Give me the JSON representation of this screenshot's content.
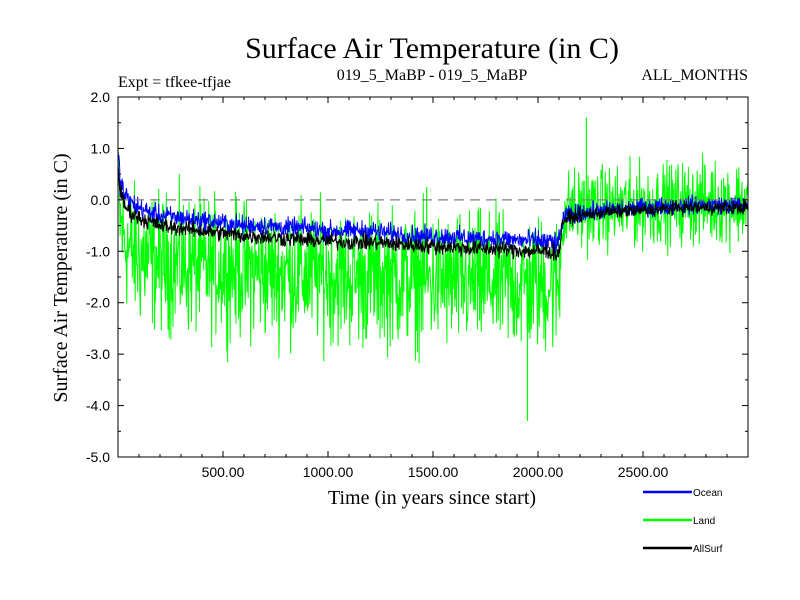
{
  "chart_data": {
    "type": "line",
    "title": "Surface Air Temperature (in C)",
    "subtitle_left": "Expt = tfkee-tfjae",
    "subtitle_center": "019_5_MaBP - 019_5_MaBP",
    "subtitle_right": "ALL_MONTHS",
    "xlabel": "Time (in years since start)",
    "ylabel": "Surface Air Temperature (in C)",
    "xlim": [
      0,
      3000
    ],
    "ylim": [
      -5.0,
      2.0
    ],
    "x_ticks": [
      500,
      1000,
      1500,
      2000,
      2500
    ],
    "x_tick_labels": [
      "500.00",
      "1000.00",
      "1500.00",
      "2000.00",
      "2500.00"
    ],
    "y_ticks": [
      2.0,
      1.0,
      0.0,
      -1.0,
      -2.0,
      -3.0,
      -4.0,
      -5.0
    ],
    "y_tick_labels": [
      "2.0",
      "1.0",
      "0.0",
      "-1.0",
      "-2.0",
      "-3.0",
      "-4.0",
      "-5.0"
    ],
    "reference_line": {
      "y": 0.0,
      "style": "dashed",
      "color": "#808080"
    },
    "legend_position": "bottom-right",
    "series": [
      {
        "name": "Land",
        "color": "#00ff00",
        "x": [
          0,
          10,
          30,
          60,
          100,
          150,
          200,
          300,
          400,
          500,
          600,
          700,
          800,
          900,
          1000,
          1100,
          1200,
          1300,
          1400,
          1460,
          1470,
          1480,
          1500,
          1600,
          1700,
          1800,
          1900,
          2000,
          2050,
          2100,
          2110,
          2120,
          2150,
          2200,
          2300,
          2400,
          2500,
          2600,
          2700,
          2800,
          2900,
          3000
        ],
        "mean": [
          0.3,
          -0.4,
          -0.8,
          -1.0,
          -1.1,
          -1.15,
          -1.2,
          -1.25,
          -1.3,
          -1.3,
          -1.35,
          -1.4,
          -1.4,
          -1.45,
          -1.45,
          -1.5,
          -1.5,
          -1.5,
          -1.55,
          -1.55,
          -1.55,
          -1.55,
          -1.55,
          -1.6,
          -1.6,
          -1.6,
          -1.65,
          -1.65,
          -1.65,
          -1.65,
          -0.8,
          -0.3,
          -0.2,
          -0.2,
          -0.15,
          -0.15,
          -0.1,
          -0.1,
          -0.05,
          -0.05,
          -0.05,
          -0.05
        ],
        "spread": [
          1.0,
          1.3,
          1.4,
          1.45,
          1.5,
          1.5,
          1.5,
          1.5,
          1.5,
          1.5,
          1.5,
          1.5,
          1.5,
          1.5,
          1.5,
          1.5,
          1.5,
          1.5,
          1.5,
          1.5,
          1.5,
          1.5,
          1.5,
          1.5,
          1.5,
          1.5,
          1.5,
          1.5,
          1.5,
          1.5,
          1.2,
          0.9,
          0.9,
          0.9,
          0.9,
          0.9,
          0.9,
          0.9,
          0.9,
          0.9,
          0.9,
          0.9
        ],
        "notable_points": [
          {
            "x": 1470,
            "y": 0.25
          },
          {
            "x": 2230,
            "y": 1.6
          },
          {
            "x": 1950,
            "y": -4.3
          }
        ]
      },
      {
        "name": "Ocean",
        "color": "#0000ff",
        "x": [
          0,
          10,
          30,
          60,
          100,
          150,
          200,
          300,
          400,
          500,
          600,
          700,
          800,
          900,
          1000,
          1100,
          1200,
          1300,
          1400,
          1500,
          1600,
          1700,
          1800,
          1900,
          2000,
          2050,
          2100,
          2110,
          2120,
          2150,
          2200,
          2300,
          2400,
          2500,
          2600,
          2700,
          2800,
          2900,
          3000
        ],
        "mean": [
          0.9,
          0.4,
          0.1,
          -0.05,
          -0.15,
          -0.25,
          -0.3,
          -0.35,
          -0.4,
          -0.45,
          -0.5,
          -0.5,
          -0.55,
          -0.55,
          -0.6,
          -0.6,
          -0.6,
          -0.65,
          -0.7,
          -0.7,
          -0.72,
          -0.75,
          -0.75,
          -0.78,
          -0.8,
          -0.82,
          -0.85,
          -0.55,
          -0.35,
          -0.3,
          -0.25,
          -0.2,
          -0.18,
          -0.15,
          -0.12,
          -0.1,
          -0.1,
          -0.1,
          -0.1
        ],
        "spread": [
          0.3,
          0.3,
          0.28,
          0.25,
          0.25,
          0.22,
          0.22,
          0.22,
          0.22,
          0.22,
          0.22,
          0.22,
          0.22,
          0.22,
          0.22,
          0.22,
          0.22,
          0.22,
          0.22,
          0.22,
          0.22,
          0.22,
          0.22,
          0.22,
          0.25,
          0.25,
          0.25,
          0.25,
          0.22,
          0.2,
          0.2,
          0.2,
          0.2,
          0.2,
          0.2,
          0.2,
          0.2,
          0.2,
          0.2
        ]
      },
      {
        "name": "AllSurf",
        "color": "#000000",
        "x": [
          0,
          10,
          30,
          60,
          100,
          200,
          300,
          400,
          500,
          600,
          700,
          800,
          900,
          1000,
          1100,
          1200,
          1300,
          1400,
          1500,
          1600,
          1700,
          1800,
          1900,
          2000,
          2050,
          2100,
          2110,
          2120,
          2150,
          2200,
          2300,
          2400,
          2500,
          2600,
          2700,
          2800,
          2900,
          3000
        ],
        "mean": [
          0.7,
          0.2,
          -0.1,
          -0.25,
          -0.35,
          -0.5,
          -0.55,
          -0.6,
          -0.65,
          -0.7,
          -0.72,
          -0.75,
          -0.78,
          -0.8,
          -0.82,
          -0.82,
          -0.85,
          -0.88,
          -0.9,
          -0.92,
          -0.95,
          -0.95,
          -0.98,
          -1.0,
          -1.0,
          -1.05,
          -0.65,
          -0.4,
          -0.35,
          -0.3,
          -0.25,
          -0.22,
          -0.2,
          -0.18,
          -0.15,
          -0.15,
          -0.15,
          -0.15
        ],
        "spread": [
          0.2,
          0.2,
          0.2,
          0.18,
          0.18,
          0.18,
          0.18,
          0.18,
          0.18,
          0.18,
          0.18,
          0.18,
          0.18,
          0.18,
          0.18,
          0.18,
          0.18,
          0.18,
          0.18,
          0.18,
          0.18,
          0.18,
          0.18,
          0.2,
          0.2,
          0.2,
          0.2,
          0.18,
          0.15,
          0.15,
          0.15,
          0.15,
          0.15,
          0.15,
          0.15,
          0.15,
          0.15,
          0.15
        ]
      }
    ],
    "legend": [
      {
        "name": "Ocean",
        "color": "#0000ff"
      },
      {
        "name": "Land",
        "color": "#00ff00"
      },
      {
        "name": "AllSurf",
        "color": "#000000"
      }
    ]
  }
}
